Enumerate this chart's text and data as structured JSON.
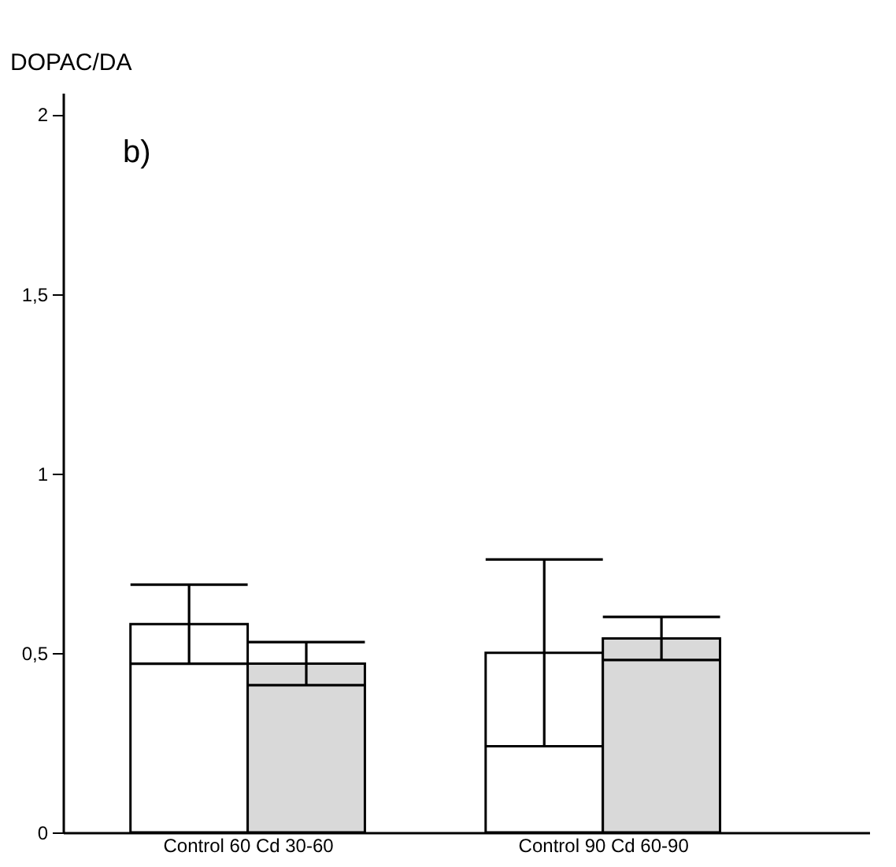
{
  "chart_data": {
    "type": "bar",
    "ylabel": "DOPAC/DA",
    "annotations": [
      "b)"
    ],
    "categories": [
      "Control 60 Cd 30-60",
      "Control 90 Cd 60-90"
    ],
    "series": [
      {
        "color": "#ffffff",
        "values": [
          0.58,
          0.5
        ],
        "errors": [
          0.11,
          0.26
        ]
      },
      {
        "color": "#d9d9d9",
        "values": [
          0.47,
          0.54
        ],
        "errors": [
          0.06,
          0.06
        ]
      }
    ],
    "ylim": [
      0,
      2.06
    ],
    "yticks": [
      0,
      {
        "value": 0.5,
        "label": "0,5"
      },
      1,
      {
        "value": 1.5,
        "label": "1,5"
      },
      2
    ],
    "grid": false,
    "legend": false
  }
}
